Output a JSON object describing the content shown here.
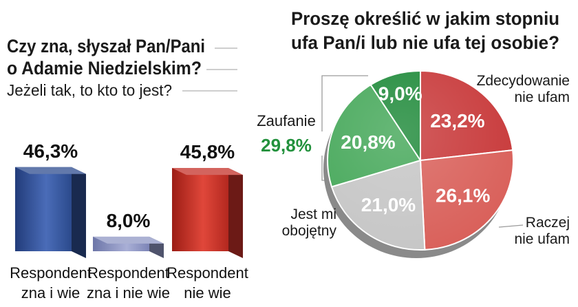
{
  "chart_data": [
    {
      "type": "bar",
      "title": "Czy zna, słyszał Pan/Pani o Adamie Niedzielskim?",
      "title_lines": [
        "Czy zna, słyszał Pan/Pani",
        "o Adamie Niedzielskim?"
      ],
      "subtitle": "Jeżeli tak, to kto to jest?",
      "categories": [
        "Respondent zna i wie",
        "Respondent zna i nie wie",
        "Respondent nie wie"
      ],
      "category_lines": [
        [
          "Respondent",
          "zna i wie"
        ],
        [
          "Respondent",
          "zna i nie wie"
        ],
        [
          "Respondent",
          "nie wie"
        ]
      ],
      "values": [
        46.3,
        8.0,
        45.8
      ],
      "value_labels": [
        "46,3%",
        "8,0%",
        "45,8%"
      ],
      "colors": [
        "#2d4c8f",
        "#8f97c4",
        "#c43028"
      ],
      "ylim": [
        0,
        50
      ],
      "grid": false
    },
    {
      "type": "pie",
      "title": "Proszę określić w jakim stopniu ufa Pan/i lub nie ufa tej osobie?",
      "title_lines": [
        "Proszę określić w jakim stopniu",
        "ufa Pan/i lub nie ufa tej osobie?"
      ],
      "slices": [
        {
          "label": "Zdecydowanie nie ufam",
          "label_lines": [
            "Zdecydowanie",
            "nie ufam"
          ],
          "value": 23.2,
          "value_label": "23,2%",
          "color": "#c8393a"
        },
        {
          "label": "Raczej nie ufam",
          "label_lines": [
            "Raczej",
            "nie ufam"
          ],
          "value": 26.1,
          "value_label": "26,1%",
          "color": "#d9605a"
        },
        {
          "label": "Jest mi obojętny",
          "label_lines": [
            "Jest mi",
            "obojętny"
          ],
          "value": 21.0,
          "value_label": "21,0%",
          "color": "#c6c6c6"
        },
        {
          "label": "",
          "value": 20.8,
          "value_label": "20,8%",
          "color": "#46a85a"
        },
        {
          "label": "",
          "value": 9.0,
          "value_label": "9,0%",
          "color": "#1f8a3a"
        }
      ],
      "group": {
        "label": "Zaufanie",
        "value": 29.8,
        "value_label": "29,8%",
        "color": "#22913c"
      }
    }
  ]
}
